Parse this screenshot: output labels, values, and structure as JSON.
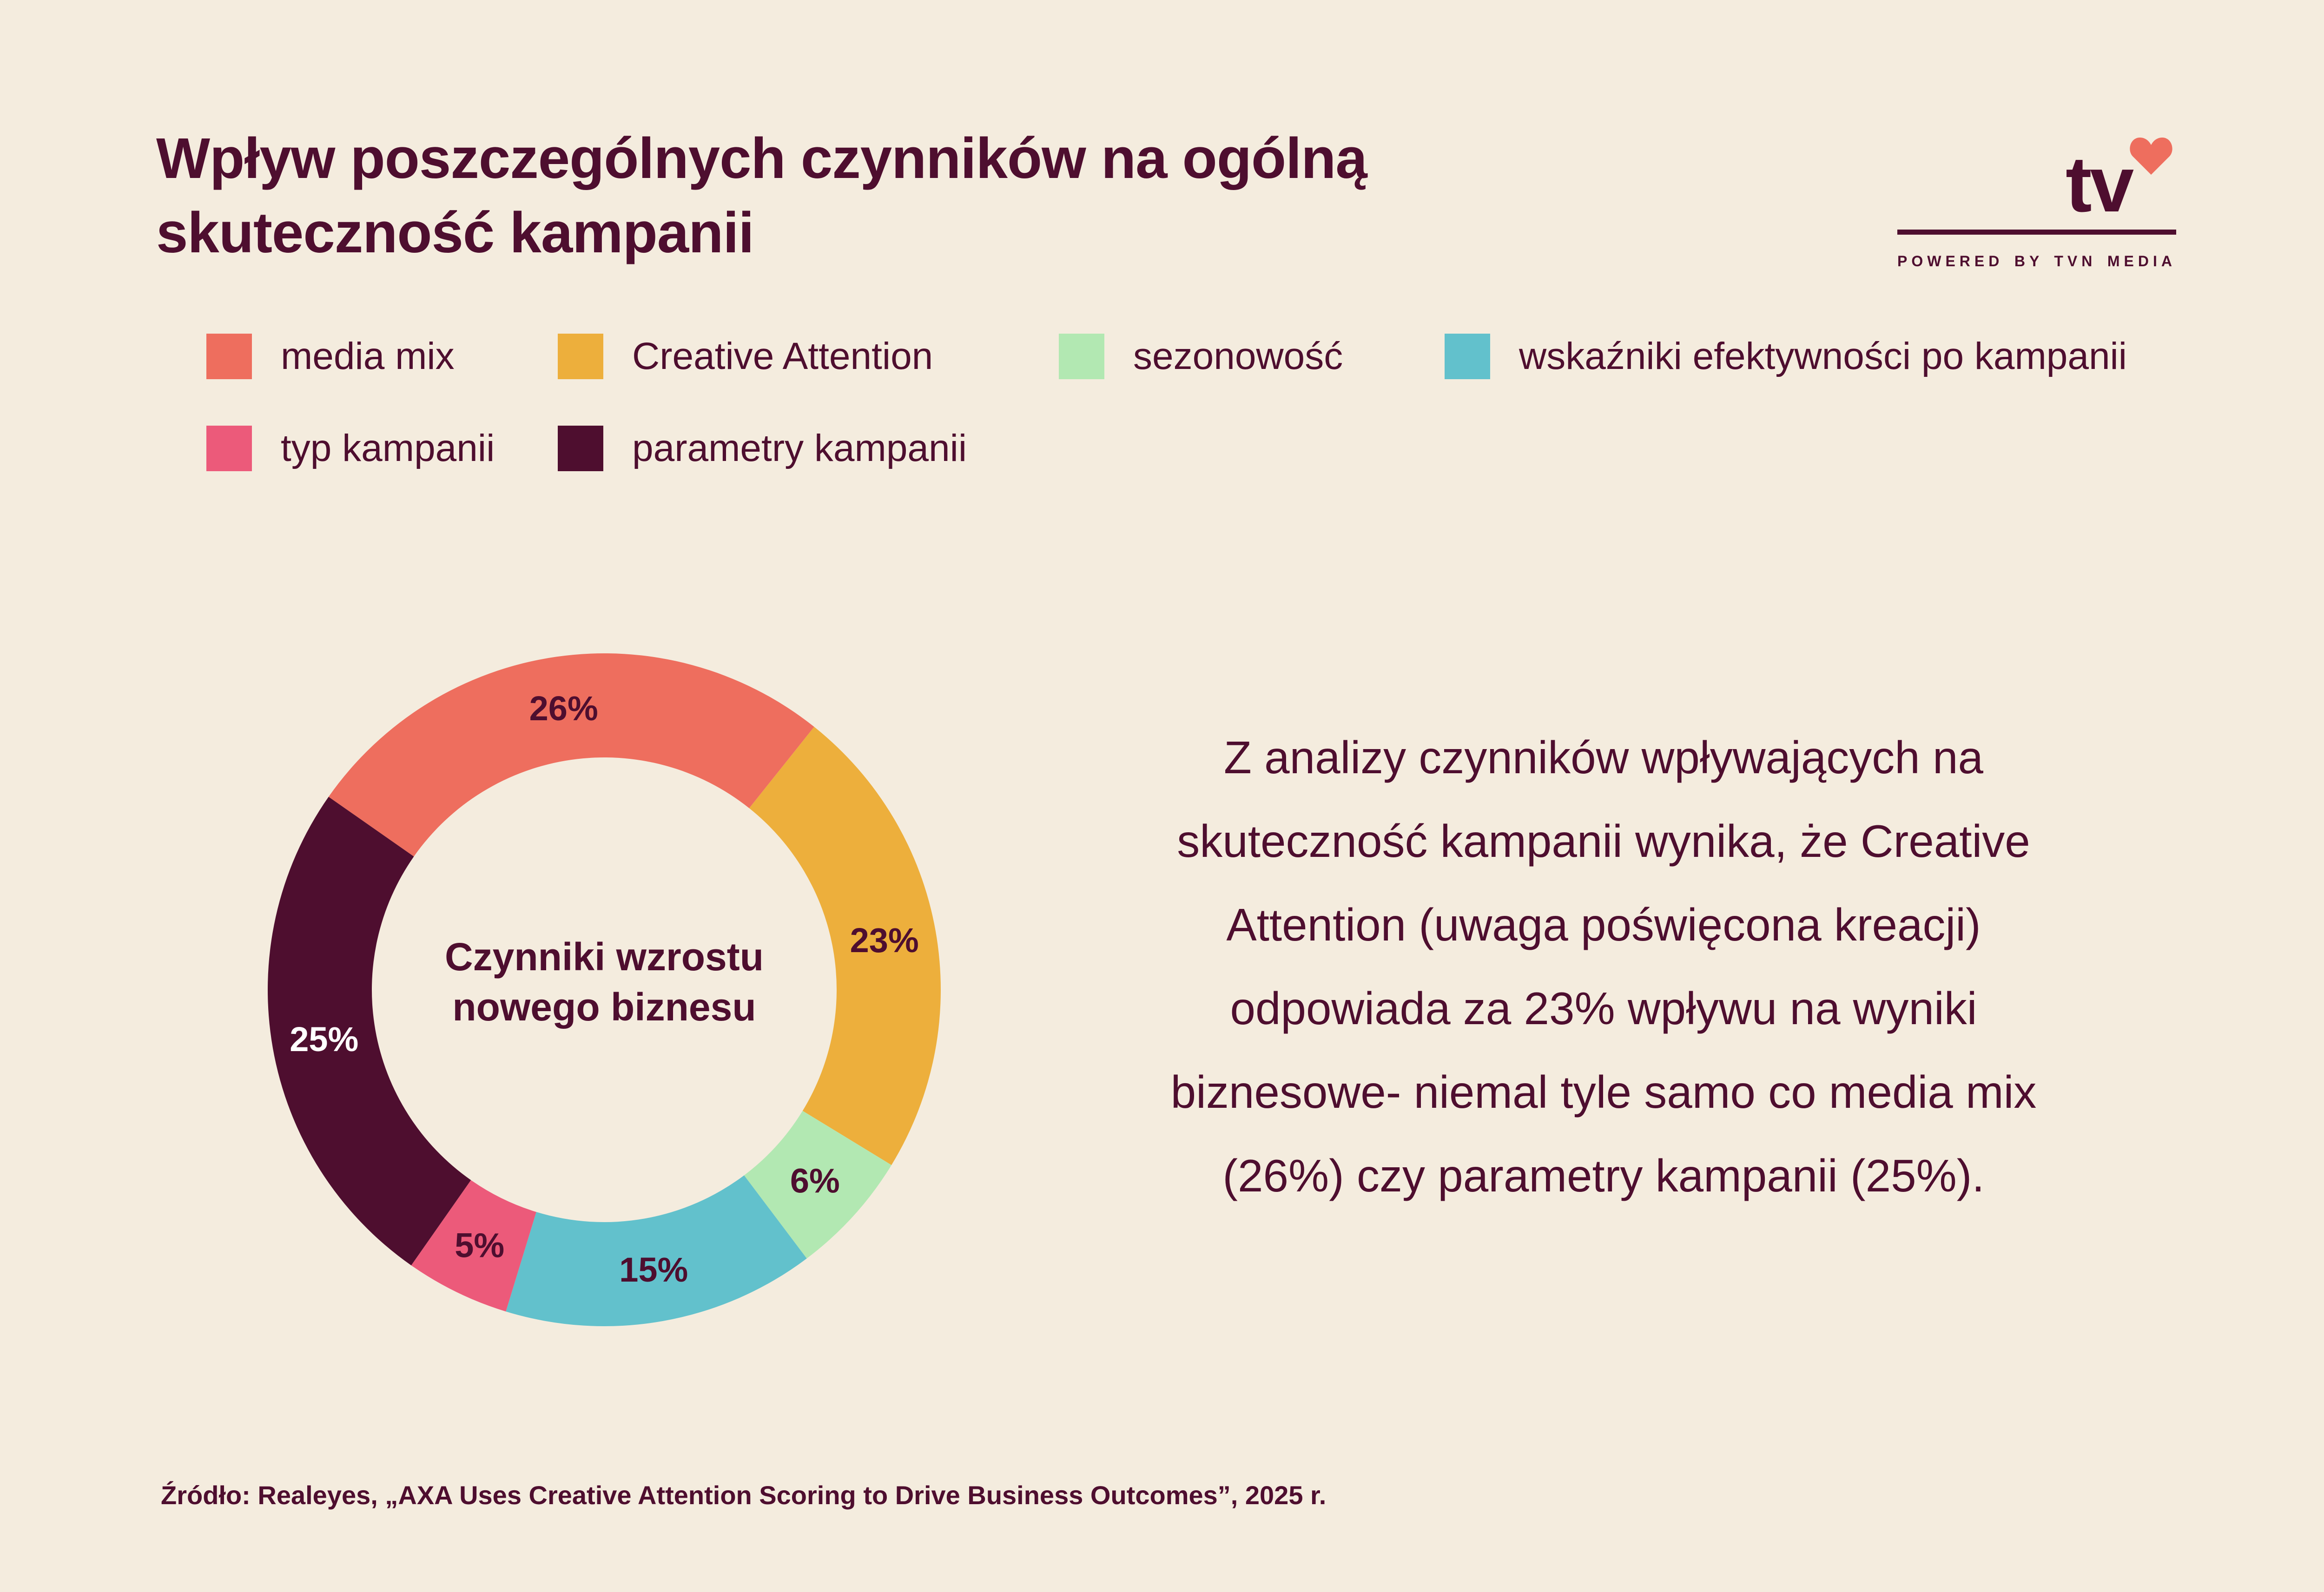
{
  "header": {
    "title_line1": "Wpływ poszczególnych czynników na ogólną",
    "title_line2": "skuteczność kampanii"
  },
  "logo": {
    "brand_text": "tv",
    "tagline": "POWERED BY TVN MEDIA",
    "heart_color": "#EE6E5E"
  },
  "colors": {
    "background": "#F4ECDE",
    "text": "#4E0E2F"
  },
  "chart_data": {
    "type": "pie",
    "variant": "donut",
    "center_label_line1": "Czynniki wzrostu",
    "center_label_line2": "nowego biznesu",
    "legend_position": "top",
    "slices": [
      {
        "name": "media mix",
        "value": 26,
        "label": "26%",
        "color": "#EE6E5E",
        "label_color": "#4E0E2F"
      },
      {
        "name": "Creative Attention",
        "value": 23,
        "label": "23%",
        "color": "#EDAF3C",
        "label_color": "#4E0E2F"
      },
      {
        "name": "sezonowość",
        "value": 6,
        "label": "6%",
        "color": "#B2E8B2",
        "label_color": "#4E0E2F"
      },
      {
        "name": "wskaźniki efektywności po kampanii",
        "value": 15,
        "label": "15%",
        "color": "#62C1CC",
        "label_color": "#4E0E2F"
      },
      {
        "name": "typ kampanii",
        "value": 5,
        "label": "5%",
        "color": "#EC5A7A",
        "label_color": "#4E0E2F"
      },
      {
        "name": "parametry kampanii",
        "value": 25,
        "label": "25%",
        "color": "#4E0E2F",
        "label_color": "#FFFFFF"
      }
    ]
  },
  "description": {
    "lines": [
      "Z analizy czynników wpływających na",
      "skuteczność kampanii wynika, że Creative",
      "Attention (uwaga poświęcona kreacji)",
      "odpowiada za 23% wpływu na wyniki",
      "biznesowe- niemal tyle samo co media mix",
      "(26%) czy parametry kampanii (25%)."
    ]
  },
  "source": {
    "text": "Źródło: Realeyes, „AXA Uses Creative Attention Scoring to Drive Business Outcomes”, 2025 r."
  }
}
